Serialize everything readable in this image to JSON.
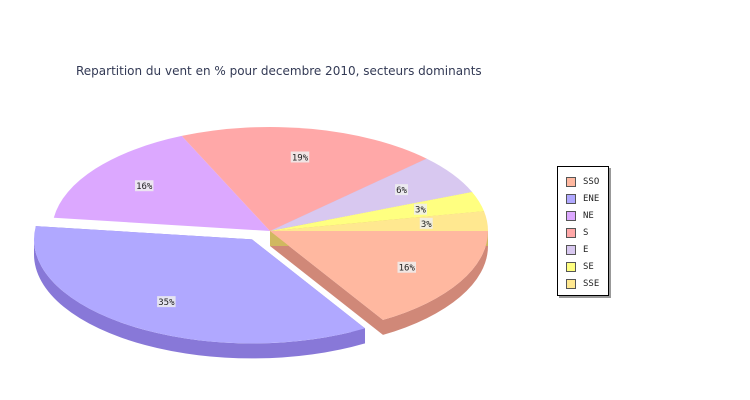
{
  "chart_data": {
    "type": "pie",
    "title": "Repartition du vent en % pour decembre 2010, secteurs dominants",
    "categories": [
      "SSO",
      "ENE",
      "NE",
      "S",
      "E",
      "SE",
      "SSE"
    ],
    "values": [
      16,
      35,
      16,
      19,
      6,
      3,
      3
    ],
    "value_labels": [
      "16%",
      "35%",
      "16%",
      "19%",
      "6%",
      "3%",
      "3%"
    ],
    "colors": [
      "#ffb8a0",
      "#b0a8ff",
      "#dca8ff",
      "#ffa8a8",
      "#d8c8f0",
      "#ffff80",
      "#ffe890"
    ],
    "side_colors": [
      "#d08878",
      "#8878d8",
      "#b078d8",
      "#d07878",
      "#a898c8",
      "#cccc50",
      "#d0b860"
    ],
    "exploded": "ENE",
    "legend_position": "right"
  }
}
